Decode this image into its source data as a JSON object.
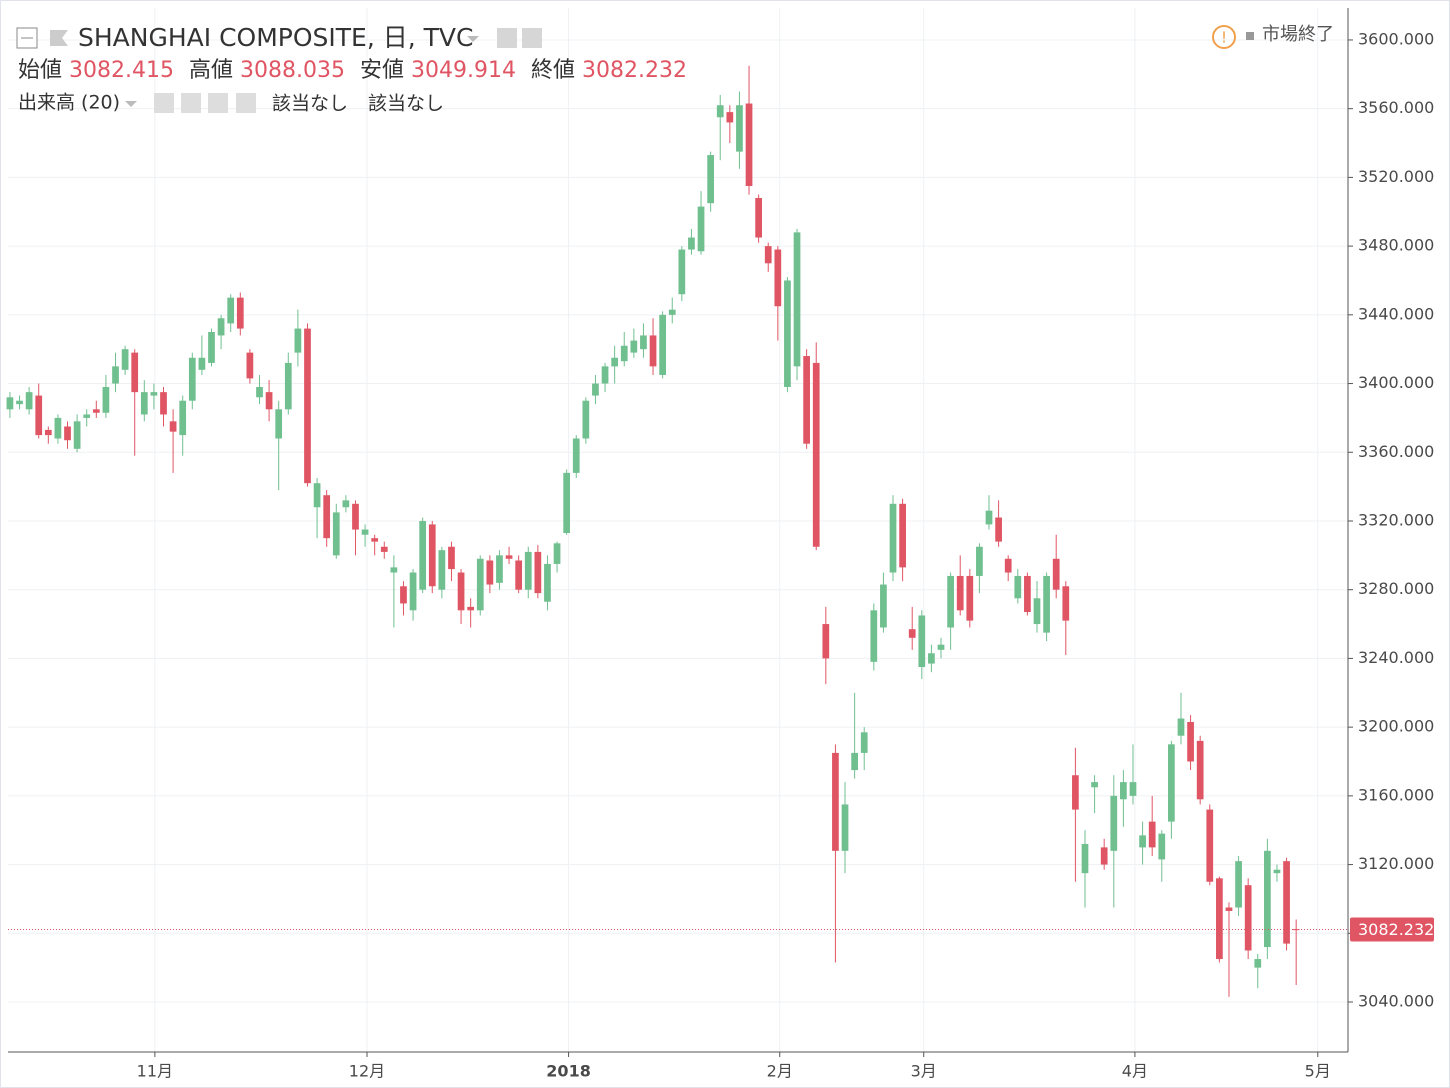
{
  "chart_data": {
    "type": "candlestick",
    "title": "SHANGHAI COMPOSITE, 日, TVC",
    "ohlc_labels": [
      "始値",
      "高値",
      "安値",
      "終値"
    ],
    "indicator": "出来高 (20)",
    "indicator_values": [
      "該当なし",
      "該当なし"
    ],
    "status": "市場終了",
    "up_color": "#6fbf8f",
    "down_color": "#e05563",
    "open": [
      3385,
      3388,
      3385,
      3393,
      3373,
      3368,
      3375,
      3362,
      3380,
      3385,
      3383,
      3400,
      3408,
      3418,
      3382,
      3393,
      3395,
      3378,
      3370,
      3390,
      3408,
      3412,
      3428,
      3435,
      3450,
      3418,
      3392,
      3395,
      3368,
      3385,
      3418,
      3432,
      3328,
      3335,
      3300,
      3328,
      3330,
      3312,
      3310,
      3305,
      3290,
      3282,
      3268,
      3280,
      3318,
      3280,
      3305,
      3290,
      3270,
      3268,
      3297,
      3284,
      3300,
      3297,
      3280,
      3302,
      3273,
      3295,
      3313,
      3348,
      3368,
      3393,
      3400,
      3410,
      3413,
      3418,
      3420,
      3428,
      3405,
      3440,
      3452,
      3478,
      3477,
      3505,
      3555,
      3558,
      3535,
      3563,
      3508,
      3480,
      3478,
      3398,
      3410,
      3416,
      3412,
      3260,
      3185,
      3128,
      3175,
      3185,
      3238,
      3258,
      3290,
      3330,
      3257,
      3235,
      3237,
      3245,
      3258,
      3288,
      3288,
      3288,
      3318,
      3322,
      3298,
      3275,
      3288,
      3260,
      3255,
      3298,
      3282,
      3172,
      3115,
      3165,
      3130,
      3128,
      3158,
      3160,
      3130,
      3145,
      3123,
      3145,
      3195,
      3203,
      3192,
      3152,
      3112,
      3095,
      3095,
      3108,
      3060,
      3072,
      3115,
      3122,
      3082.415
    ],
    "high": [
      3395,
      3393,
      3398,
      3400,
      3375,
      3382,
      3378,
      3382,
      3385,
      3390,
      3405,
      3418,
      3422,
      3420,
      3402,
      3400,
      3398,
      3385,
      3393,
      3418,
      3428,
      3432,
      3440,
      3452,
      3453,
      3420,
      3405,
      3402,
      3390,
      3418,
      3443,
      3435,
      3345,
      3338,
      3330,
      3335,
      3332,
      3318,
      3312,
      3308,
      3300,
      3285,
      3292,
      3322,
      3320,
      3305,
      3308,
      3292,
      3275,
      3300,
      3300,
      3303,
      3305,
      3300,
      3305,
      3306,
      3300,
      3308,
      3350,
      3370,
      3392,
      3405,
      3412,
      3422,
      3430,
      3432,
      3435,
      3438,
      3442,
      3450,
      3480,
      3490,
      3512,
      3535,
      3568,
      3562,
      3570,
      3585,
      3510,
      3482,
      3480,
      3462,
      3490,
      3420,
      3424,
      3270,
      3190,
      3168,
      3220,
      3200,
      3272,
      3290,
      3335,
      3333,
      3270,
      3268,
      3248,
      3252,
      3290,
      3300,
      3292,
      3307,
      3335,
      3332,
      3300,
      3292,
      3290,
      3285,
      3290,
      3312,
      3285,
      3188,
      3140,
      3172,
      3135,
      3172,
      3175,
      3190,
      3145,
      3160,
      3140,
      3192,
      3220,
      3207,
      3195,
      3155,
      3113,
      3098,
      3125,
      3112,
      3068,
      3135,
      3120,
      3124,
      3088.035
    ],
    "low": [
      3380,
      3385,
      3382,
      3368,
      3365,
      3365,
      3362,
      3360,
      3375,
      3380,
      3380,
      3395,
      3405,
      3358,
      3378,
      3385,
      3375,
      3348,
      3358,
      3385,
      3405,
      3410,
      3420,
      3430,
      3428,
      3400,
      3388,
      3378,
      3338,
      3382,
      3410,
      3340,
      3310,
      3305,
      3298,
      3325,
      3300,
      3305,
      3300,
      3298,
      3258,
      3265,
      3262,
      3278,
      3278,
      3275,
      3285,
      3260,
      3258,
      3265,
      3278,
      3280,
      3295,
      3278,
      3275,
      3275,
      3268,
      3290,
      3312,
      3345,
      3365,
      3388,
      3395,
      3400,
      3410,
      3415,
      3415,
      3405,
      3403,
      3435,
      3448,
      3475,
      3475,
      3500,
      3530,
      3540,
      3525,
      3510,
      3482,
      3465,
      3425,
      3395,
      3402,
      3362,
      3303,
      3225,
      3063,
      3115,
      3170,
      3175,
      3233,
      3255,
      3285,
      3285,
      3245,
      3228,
      3232,
      3240,
      3245,
      3265,
      3258,
      3278,
      3315,
      3305,
      3285,
      3272,
      3265,
      3255,
      3250,
      3275,
      3242,
      3110,
      3095,
      3150,
      3117,
      3095,
      3142,
      3155,
      3120,
      3125,
      3110,
      3135,
      3190,
      3175,
      3155,
      3108,
      3063,
      3043,
      3090,
      3065,
      3048,
      3065,
      3110,
      3070,
      3049.914
    ],
    "close": [
      3392,
      3390,
      3395,
      3370,
      3370,
      3380,
      3367,
      3378,
      3382,
      3383,
      3398,
      3410,
      3420,
      3395,
      3395,
      3395,
      3382,
      3372,
      3390,
      3415,
      3415,
      3430,
      3438,
      3450,
      3432,
      3403,
      3398,
      3385,
      3385,
      3412,
      3432,
      3342,
      3342,
      3310,
      3325,
      3332,
      3315,
      3315,
      3308,
      3302,
      3293,
      3272,
      3290,
      3320,
      3282,
      3303,
      3292,
      3268,
      3268,
      3298,
      3283,
      3300,
      3298,
      3280,
      3302,
      3278,
      3295,
      3307,
      3348,
      3368,
      3390,
      3400,
      3410,
      3415,
      3422,
      3425,
      3428,
      3410,
      3440,
      3443,
      3478,
      3485,
      3503,
      3533,
      3562,
      3552,
      3562,
      3515,
      3485,
      3470,
      3445,
      3460,
      3488,
      3365,
      3305,
      3240,
      3128,
      3155,
      3185,
      3197,
      3268,
      3283,
      3330,
      3293,
      3252,
      3265,
      3243,
      3248,
      3288,
      3268,
      3262,
      3305,
      3326,
      3308,
      3290,
      3288,
      3267,
      3275,
      3288,
      3280,
      3262,
      3152,
      3132,
      3168,
      3120,
      3160,
      3168,
      3168,
      3137,
      3130,
      3138,
      3190,
      3205,
      3180,
      3158,
      3110,
      3065,
      3093,
      3122,
      3070,
      3065,
      3128,
      3117,
      3074,
      3082.232
    ],
    "xlim": [
      -0.2,
      139.4
    ],
    "xticks": [
      {
        "value": 15.1,
        "label": "11月"
      },
      {
        "value": 37.2,
        "label": "12月"
      },
      {
        "value": 58.2,
        "label": "2018"
      },
      {
        "value": 80.2,
        "label": "2月"
      },
      {
        "value": 95.2,
        "label": "3月"
      },
      {
        "value": 117.2,
        "label": "4月"
      },
      {
        "value": 136.25,
        "label": "5月"
      }
    ],
    "ylim": [
      3010.9,
      3618.6
    ],
    "yticks": [
      {
        "value": 3040,
        "label": "3040.000"
      },
      {
        "value": 3080,
        "label": "3080.000"
      },
      {
        "value": 3120,
        "label": "3120.000"
      },
      {
        "value": 3160,
        "label": "3160.000"
      },
      {
        "value": 3200,
        "label": "3200.000"
      },
      {
        "value": 3240,
        "label": "3240.000"
      },
      {
        "value": 3280,
        "label": "3280.000"
      },
      {
        "value": 3320,
        "label": "3320.000"
      },
      {
        "value": 3360,
        "label": "3360.000"
      },
      {
        "value": 3400,
        "label": "3400.000"
      },
      {
        "value": 3440,
        "label": "3440.000"
      },
      {
        "value": 3480,
        "label": "3480.000"
      },
      {
        "value": 3520,
        "label": "3520.000"
      },
      {
        "value": 3560,
        "label": "3560.000"
      },
      {
        "value": 3600,
        "label": "3600.000"
      }
    ],
    "grid": true
  }
}
